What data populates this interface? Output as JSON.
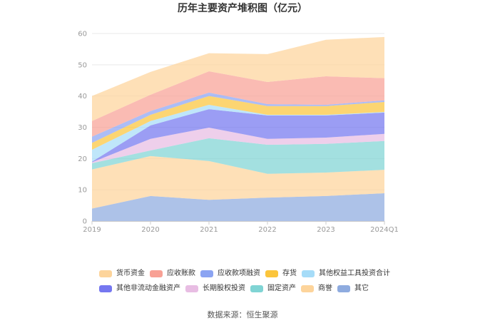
{
  "source": "数据来源：恒生聚源",
  "chart_data": {
    "type": "area",
    "stacked": true,
    "title": "历年主要资产堆积图（亿元）",
    "categories": [
      "2019",
      "2020",
      "2021",
      "2022",
      "2023",
      "2024Q1"
    ],
    "ylim": [
      0,
      60
    ],
    "yticks": [
      0,
      10,
      20,
      30,
      40,
      50,
      60
    ],
    "grid": true,
    "legend_position": "bottom",
    "series": [
      {
        "name": "货币资金",
        "color": "#fdd49b",
        "values": [
          8.0,
          7.3,
          5.8,
          8.9,
          11.7,
          13.2
        ]
      },
      {
        "name": "应收账款",
        "color": "#f8a195",
        "values": [
          5.0,
          5.2,
          6.8,
          7.1,
          9.1,
          7.1
        ]
      },
      {
        "name": "应收款项融资",
        "color": "#8ca4f2",
        "values": [
          2.0,
          1.2,
          1.1,
          0.6,
          0.4,
          0.5
        ]
      },
      {
        "name": "存货",
        "color": "#fbc53c",
        "values": [
          2.2,
          2.0,
          2.8,
          2.8,
          2.8,
          3.2
        ]
      },
      {
        "name": "其他权益工具投资合计",
        "color": "#a6dcf8",
        "values": [
          3.8,
          1.4,
          1.4,
          0.2,
          0.2,
          0.2
        ]
      },
      {
        "name": "其他非流动金融资产",
        "color": "#7577f0",
        "values": [
          0.2,
          4.3,
          5.9,
          7.5,
          7.1,
          6.8
        ]
      },
      {
        "name": "长期股权投资",
        "color": "#e8bde3",
        "values": [
          0.3,
          3.7,
          3.4,
          1.9,
          2.0,
          2.3
        ]
      },
      {
        "name": "固定资产",
        "color": "#80d4d4",
        "values": [
          2.0,
          1.8,
          7.3,
          9.3,
          9.2,
          9.2
        ]
      },
      {
        "name": "商誉",
        "color": "#fdd49b",
        "values": [
          12.5,
          12.8,
          12.4,
          7.6,
          7.5,
          7.5
        ]
      },
      {
        "name": "其它",
        "color": "#8eabdf",
        "values": [
          4.0,
          8.0,
          6.8,
          7.5,
          8.0,
          8.9
        ]
      }
    ]
  }
}
